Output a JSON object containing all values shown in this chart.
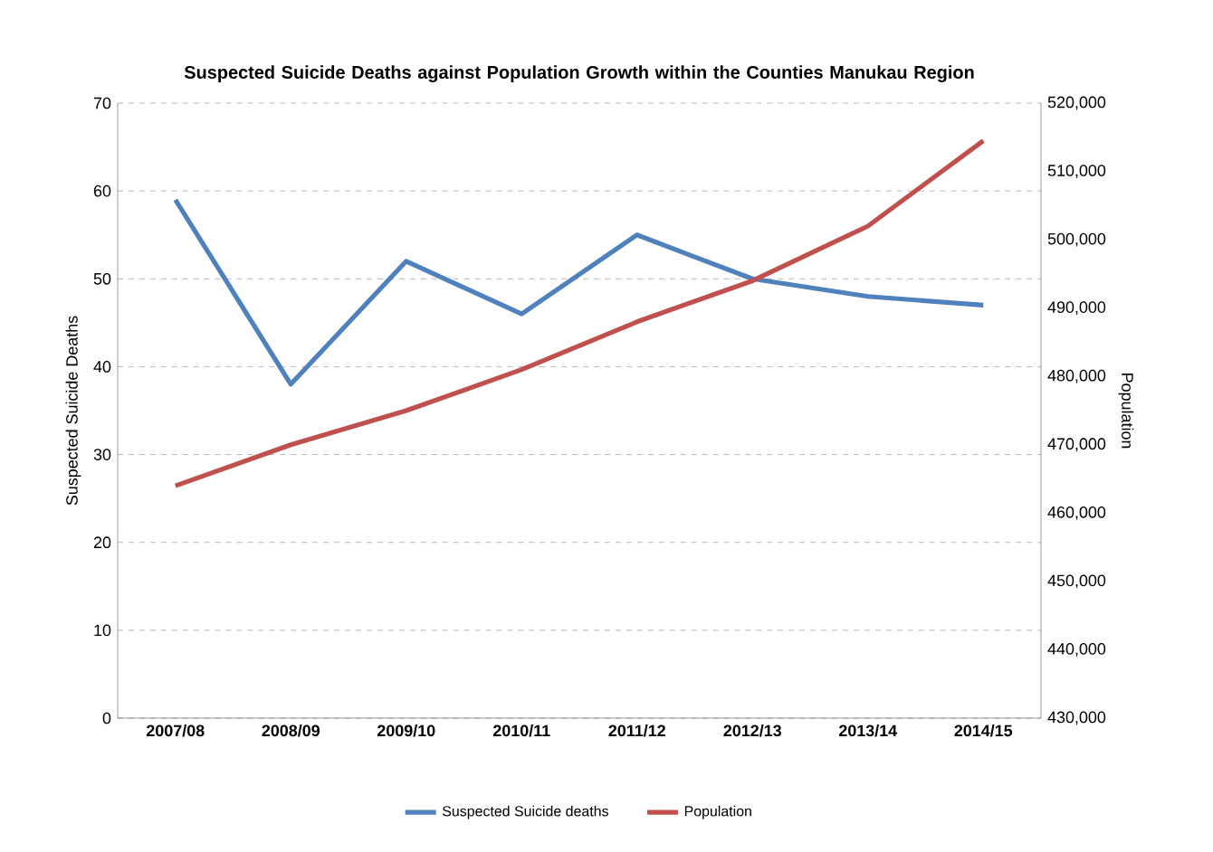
{
  "chart_data": {
    "type": "line",
    "title": "Suspected Suicide Deaths against Population Growth within the Counties Manukau Region",
    "ylabel": "Suspected Suicide Deaths",
    "y2label": "Population",
    "categories": [
      "2007/08",
      "2008/09",
      "2009/10",
      "2010/11",
      "2011/12",
      "2012/13",
      "2013/14",
      "2014/15"
    ],
    "series": [
      {
        "name": "Suspected Suicide deaths",
        "color": "#4f81bd",
        "values": [
          59,
          38,
          52,
          46,
          55,
          50,
          48,
          47
        ]
      },
      {
        "name": "Population",
        "color": "#c0504d",
        "axis": "y2",
        "values": [
          464000,
          470000,
          475000,
          481000,
          488000,
          494000,
          502000,
          514500
        ]
      }
    ],
    "ylim": [
      0,
      70
    ],
    "yticks": [
      0,
      10,
      20,
      30,
      40,
      50,
      60,
      70
    ],
    "y2lim": [
      430000,
      520000
    ],
    "y2ticks": [
      {
        "value": 430000,
        "label": "430,000"
      },
      {
        "value": 440000,
        "label": "440,000"
      },
      {
        "value": 450000,
        "label": "450,000"
      },
      {
        "value": 460000,
        "label": "460,000"
      },
      {
        "value": 470000,
        "label": "470,000"
      },
      {
        "value": 480000,
        "label": "480,000"
      },
      {
        "value": 490000,
        "label": "490,000"
      },
      {
        "value": 500000,
        "label": "500,000"
      },
      {
        "value": 510000,
        "label": "510,000"
      },
      {
        "value": 520000,
        "label": "520,000"
      }
    ],
    "grid": "y",
    "legend": "bottom",
    "marker": "none",
    "line_style": "solid"
  }
}
